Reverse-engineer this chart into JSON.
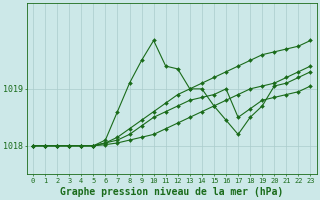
{
  "title": "Graphe pression niveau de la mer (hPa)",
  "background_color": "#cce8e8",
  "grid_color": "#aacccc",
  "line_color": "#1a6b1a",
  "xlim": [
    -0.5,
    23.5
  ],
  "ylim": [
    1017.5,
    1020.5
  ],
  "yticks": [
    1018,
    1019
  ],
  "xticks": [
    0,
    1,
    2,
    3,
    4,
    5,
    6,
    7,
    8,
    9,
    10,
    11,
    12,
    13,
    14,
    15,
    16,
    17,
    18,
    19,
    20,
    21,
    22,
    23
  ],
  "series": [
    [
      1018.0,
      1018.0,
      1018.0,
      1018.0,
      1018.0,
      1018.0,
      1018.1,
      1018.6,
      1019.1,
      1019.5,
      1019.85,
      1019.4,
      1019.35,
      1019.0,
      1019.0,
      1018.7,
      1018.45,
      1018.2,
      1018.5,
      1018.7,
      1019.05,
      1019.1,
      1019.2,
      1019.3
    ],
    [
      1018.0,
      1018.0,
      1018.0,
      1018.0,
      1018.0,
      1018.0,
      1018.05,
      1018.15,
      1018.3,
      1018.45,
      1018.6,
      1018.75,
      1018.9,
      1019.0,
      1019.1,
      1019.2,
      1019.3,
      1019.4,
      1019.5,
      1019.6,
      1019.65,
      1019.7,
      1019.75,
      1019.85
    ],
    [
      1018.0,
      1018.0,
      1018.0,
      1018.0,
      1018.0,
      1018.0,
      1018.05,
      1018.1,
      1018.2,
      1018.35,
      1018.5,
      1018.6,
      1018.7,
      1018.8,
      1018.85,
      1018.9,
      1019.0,
      1018.5,
      1018.65,
      1018.8,
      1018.85,
      1018.9,
      1018.95,
      1019.05
    ],
    [
      1018.0,
      1018.0,
      1018.0,
      1018.0,
      1018.0,
      1018.0,
      1018.02,
      1018.05,
      1018.1,
      1018.15,
      1018.2,
      1018.3,
      1018.4,
      1018.5,
      1018.6,
      1018.7,
      1018.8,
      1018.9,
      1019.0,
      1019.05,
      1019.1,
      1019.2,
      1019.3,
      1019.4
    ]
  ],
  "marker": "D",
  "markersize": 2.0,
  "linewidth": 0.8,
  "title_fontsize": 7,
  "tick_fontsize": 5,
  "ytick_fontsize": 6
}
